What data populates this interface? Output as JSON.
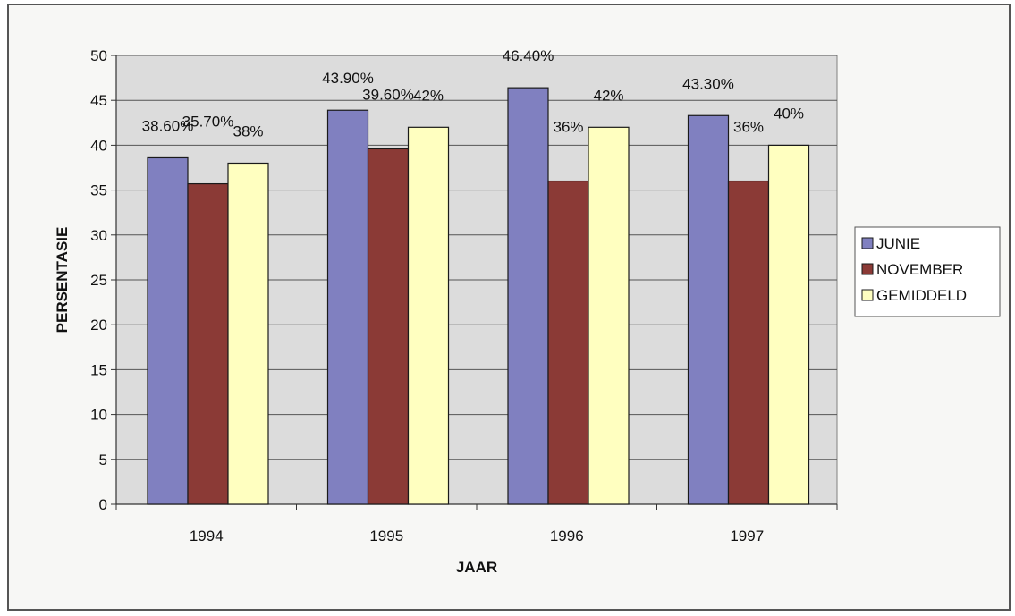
{
  "chart_data": {
    "type": "bar",
    "categories": [
      "1994",
      "1995",
      "1996",
      "1997"
    ],
    "series": [
      {
        "name": "JUNIE",
        "values": [
          38.6,
          43.9,
          46.4,
          43.3
        ],
        "labels": [
          "38.60%",
          "43.90%",
          "46.40%",
          "43.30%"
        ],
        "color": "#8080c0"
      },
      {
        "name": "NOVEMBER",
        "values": [
          35.7,
          39.6,
          36,
          36
        ],
        "labels": [
          "35.70%",
          "39.60%",
          "36%",
          "36%"
        ],
        "color": "#8b3a36"
      },
      {
        "name": "GEMIDDELD",
        "values": [
          38,
          42,
          42,
          40
        ],
        "labels": [
          "38%",
          "42%",
          "42%",
          "40%"
        ],
        "color": "#ffffc0"
      }
    ],
    "xlabel": "JAAR",
    "ylabel": "PERSENTASIE",
    "ylim": [
      0,
      50
    ],
    "yticks": [
      "0",
      "5",
      "10",
      "15",
      "20",
      "25",
      "30",
      "35",
      "40",
      "45",
      "50"
    ],
    "grid": true,
    "legend_position": "right",
    "plot_background": "#dcdcdc"
  }
}
